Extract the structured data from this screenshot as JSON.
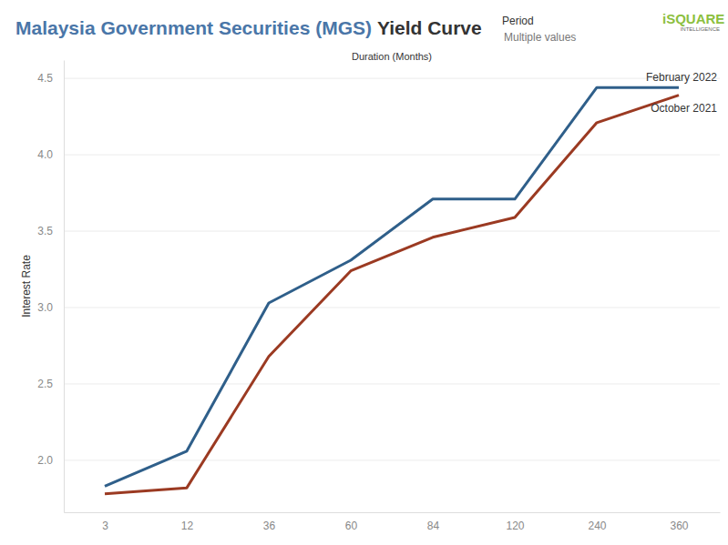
{
  "chart_data": {
    "type": "line",
    "title_parts": [
      "Malaysia Government Securities (MGS)",
      "Yield Curve"
    ],
    "legend_title": "Period",
    "legend_subtitle": "Multiple values",
    "logo_text": "iSQUARE",
    "logo_subtext": "INTELLIGENCE",
    "x_label": "Duration (Months)",
    "y_label": "Interest Rate",
    "categories": [
      3,
      12,
      36,
      60,
      84,
      120,
      240,
      360
    ],
    "series": [
      {
        "name": "February 2022",
        "color": "#2f5f8a",
        "values": [
          1.83,
          2.06,
          3.03,
          3.31,
          3.71,
          3.71,
          4.44,
          4.44
        ]
      },
      {
        "name": "October 2021",
        "color": "#9b3a22",
        "values": [
          1.78,
          1.82,
          2.68,
          3.24,
          3.46,
          3.59,
          4.21,
          4.39
        ]
      }
    ],
    "ylim": [
      1.66,
      4.62
    ],
    "yticks": [
      {
        "value": 2,
        "label": "2.0"
      },
      {
        "value": 2.5,
        "label": "2.5"
      },
      {
        "value": 3,
        "label": "3.0"
      },
      {
        "value": 3.5,
        "label": "3.5"
      },
      {
        "value": 4,
        "label": "4.0"
      },
      {
        "value": 4.5,
        "label": "4.5"
      }
    ],
    "grid": true
  }
}
